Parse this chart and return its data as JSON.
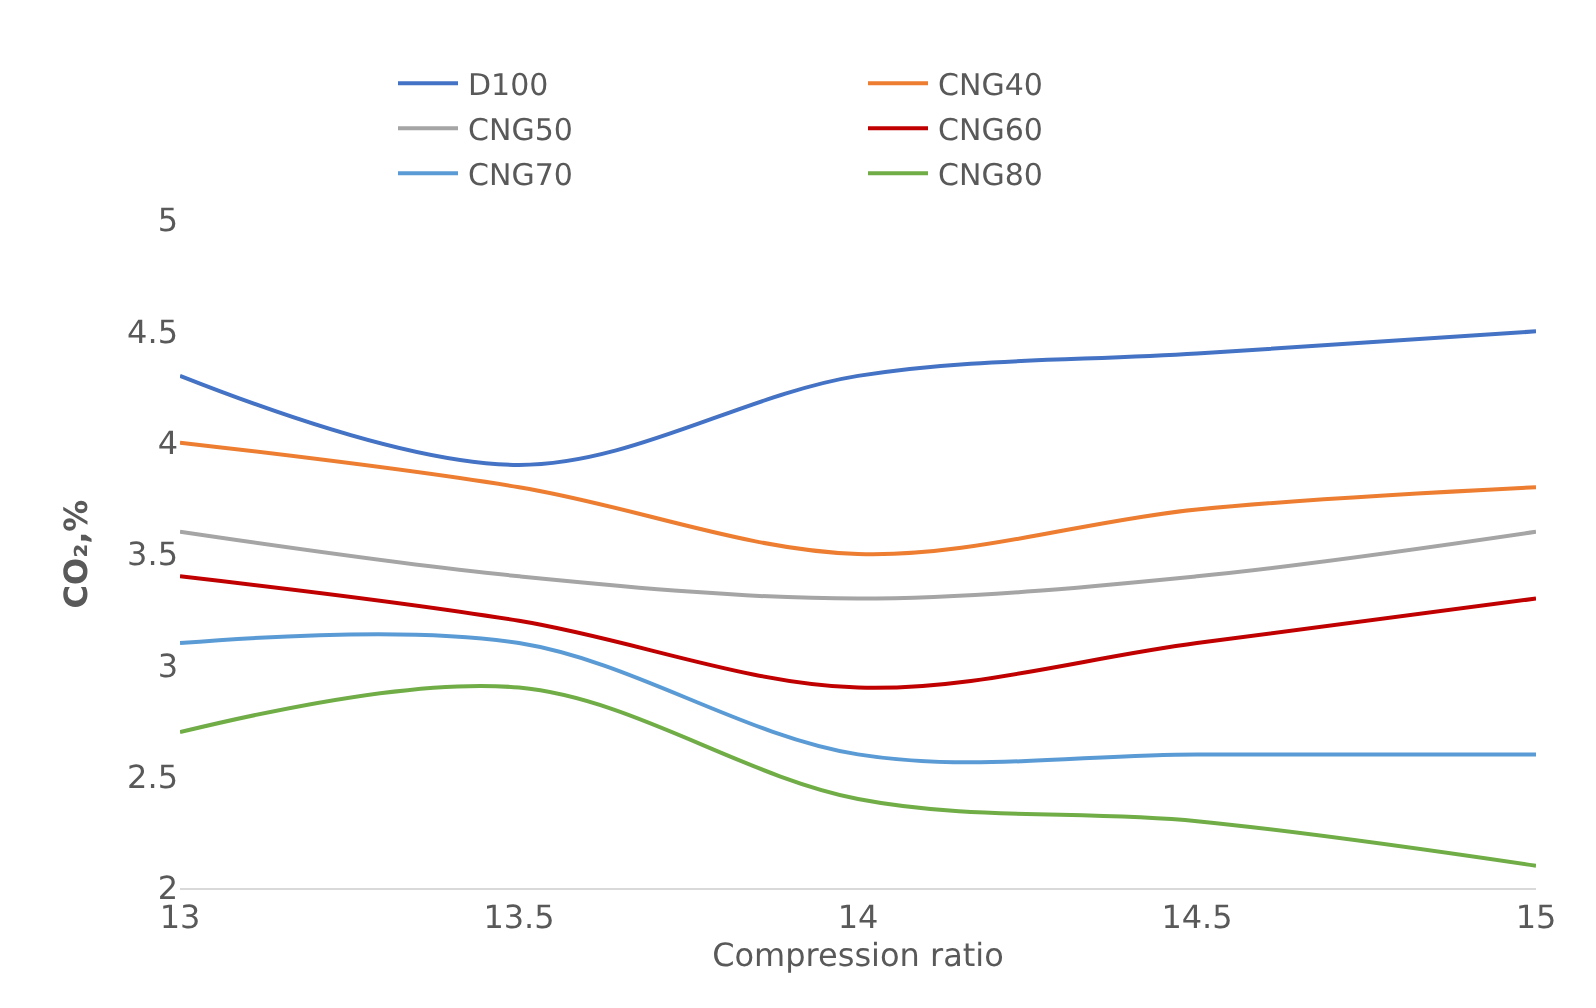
{
  "chart_data": {
    "type": "line",
    "xlabel": "Compression ratio",
    "ylabel": "CO₂,%",
    "x": [
      13,
      13.5,
      14,
      14.5,
      15
    ],
    "series": [
      {
        "name": "D100",
        "color": "#4472c4",
        "values": [
          4.3,
          3.9,
          4.3,
          4.4,
          4.5
        ]
      },
      {
        "name": "CNG40",
        "color": "#ed7d31",
        "values": [
          4.0,
          3.8,
          3.5,
          3.7,
          3.8
        ]
      },
      {
        "name": "CNG50",
        "color": "#a5a5a5",
        "values": [
          3.6,
          3.4,
          3.3,
          3.4,
          3.6
        ]
      },
      {
        "name": "CNG60",
        "color": "#c00000",
        "values": [
          3.4,
          3.2,
          2.9,
          3.1,
          3.3
        ]
      },
      {
        "name": "CNG70",
        "color": "#5b9bd5",
        "values": [
          3.1,
          3.1,
          2.6,
          2.6,
          2.6
        ]
      },
      {
        "name": "CNG80",
        "color": "#70ad47",
        "values": [
          2.7,
          2.9,
          2.4,
          2.3,
          2.1
        ]
      }
    ],
    "xlim": [
      13,
      15
    ],
    "xticks": [
      13,
      13.5,
      14,
      14.5,
      15
    ],
    "ylim": [
      2,
      5
    ],
    "yticks": [
      2,
      2.5,
      3,
      3.5,
      4,
      4.5,
      5
    ],
    "grid": false,
    "legend": "top",
    "marker": "none",
    "line_style": "solid"
  }
}
